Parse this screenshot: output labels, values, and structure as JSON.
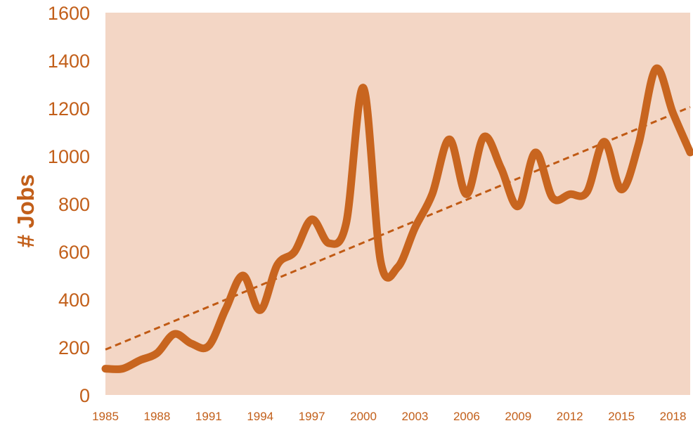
{
  "colors": {
    "plot_background": "#f3d6c5",
    "line": "#c8651f",
    "trend": "#c05a14",
    "axis_text": "#c25f1a"
  },
  "chart_data": {
    "type": "line",
    "xlabel": "",
    "ylabel": "# Jobs",
    "xlim": [
      1985,
      2019
    ],
    "ylim": [
      0,
      1600
    ],
    "y_ticks": [
      0,
      200,
      400,
      600,
      800,
      1000,
      1200,
      1400,
      1600
    ],
    "x_ticks": [
      1985,
      1988,
      1991,
      1994,
      1997,
      2000,
      2003,
      2006,
      2009,
      2012,
      2015,
      2018
    ],
    "grid": false,
    "legend": "none",
    "series": [
      {
        "style": "solid",
        "x": [
          1985,
          1986,
          1987,
          1988,
          1989,
          1990,
          1991,
          1992,
          1993,
          1994,
          1995,
          1996,
          1997,
          1998,
          1999,
          2000,
          2001,
          2002,
          2003,
          2004,
          2005,
          2006,
          2007,
          2008,
          2009,
          2010,
          2011,
          2012,
          2013,
          2014,
          2015,
          2016,
          2017,
          2018,
          2019
        ],
        "y": [
          110,
          110,
          145,
          175,
          255,
          215,
          205,
          360,
          500,
          355,
          545,
          600,
          735,
          635,
          720,
          1285,
          560,
          535,
          700,
          840,
          1070,
          840,
          1080,
          950,
          790,
          1015,
          825,
          840,
          850,
          1060,
          860,
          1050,
          1365,
          1180,
          1015
        ]
      },
      {
        "style": "dashed",
        "x": [
          1985,
          2019
        ],
        "y": [
          190,
          1205
        ]
      }
    ]
  }
}
